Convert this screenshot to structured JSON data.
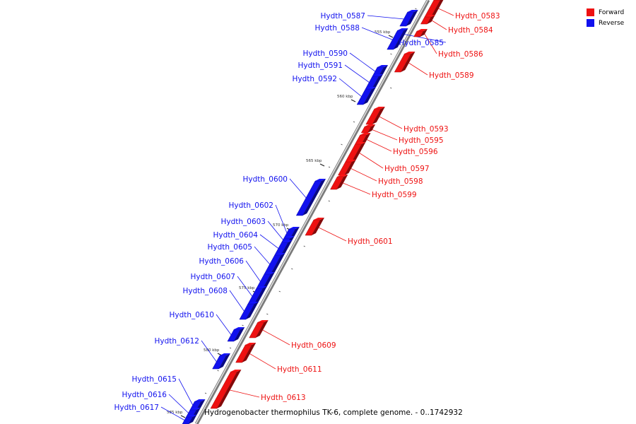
{
  "caption": "Hydrogenobacter thermophilus TK-6, complete genome. - 0..1742932",
  "legend": [
    {
      "label": "Forward",
      "color": "#ee1111"
    },
    {
      "label": "Reverse",
      "color": "#1111ee"
    }
  ],
  "colors": {
    "forward": "#ee1111",
    "reverse": "#1111ee"
  },
  "scale_labels": [
    "555 kbp",
    "560 kbp",
    "565 kbp",
    "570 kbp",
    "575 kbp",
    "580 kbp",
    "585 kbp"
  ],
  "genes": [
    {
      "id": "Hydth_0583",
      "strand": "forward"
    },
    {
      "id": "Hydth_0584",
      "strand": "forward"
    },
    {
      "id": "Hydth_0585",
      "strand": "reverse"
    },
    {
      "id": "Hydth_0586",
      "strand": "forward"
    },
    {
      "id": "Hydth_0587",
      "strand": "reverse"
    },
    {
      "id": "Hydth_0588",
      "strand": "reverse"
    },
    {
      "id": "Hydth_0589",
      "strand": "forward"
    },
    {
      "id": "Hydth_0590",
      "strand": "reverse"
    },
    {
      "id": "Hydth_0591",
      "strand": "reverse"
    },
    {
      "id": "Hydth_0592",
      "strand": "reverse"
    },
    {
      "id": "Hydth_0593",
      "strand": "forward"
    },
    {
      "id": "Hydth_0595",
      "strand": "forward"
    },
    {
      "id": "Hydth_0596",
      "strand": "forward"
    },
    {
      "id": "Hydth_0597",
      "strand": "forward"
    },
    {
      "id": "Hydth_0598",
      "strand": "forward"
    },
    {
      "id": "Hydth_0599",
      "strand": "forward"
    },
    {
      "id": "Hydth_0600",
      "strand": "reverse"
    },
    {
      "id": "Hydth_0601",
      "strand": "forward"
    },
    {
      "id": "Hydth_0602",
      "strand": "reverse"
    },
    {
      "id": "Hydth_0603",
      "strand": "reverse"
    },
    {
      "id": "Hydth_0604",
      "strand": "reverse"
    },
    {
      "id": "Hydth_0605",
      "strand": "reverse"
    },
    {
      "id": "Hydth_0606",
      "strand": "reverse"
    },
    {
      "id": "Hydth_0607",
      "strand": "reverse"
    },
    {
      "id": "Hydth_0608",
      "strand": "reverse"
    },
    {
      "id": "Hydth_0609",
      "strand": "forward"
    },
    {
      "id": "Hydth_0610",
      "strand": "reverse"
    },
    {
      "id": "Hydth_0611",
      "strand": "forward"
    },
    {
      "id": "Hydth_0612",
      "strand": "reverse"
    },
    {
      "id": "Hydth_0613",
      "strand": "forward"
    },
    {
      "id": "Hydth_0615",
      "strand": "reverse"
    },
    {
      "id": "Hydth_0616",
      "strand": "reverse"
    },
    {
      "id": "Hydth_0617",
      "strand": "reverse"
    }
  ]
}
